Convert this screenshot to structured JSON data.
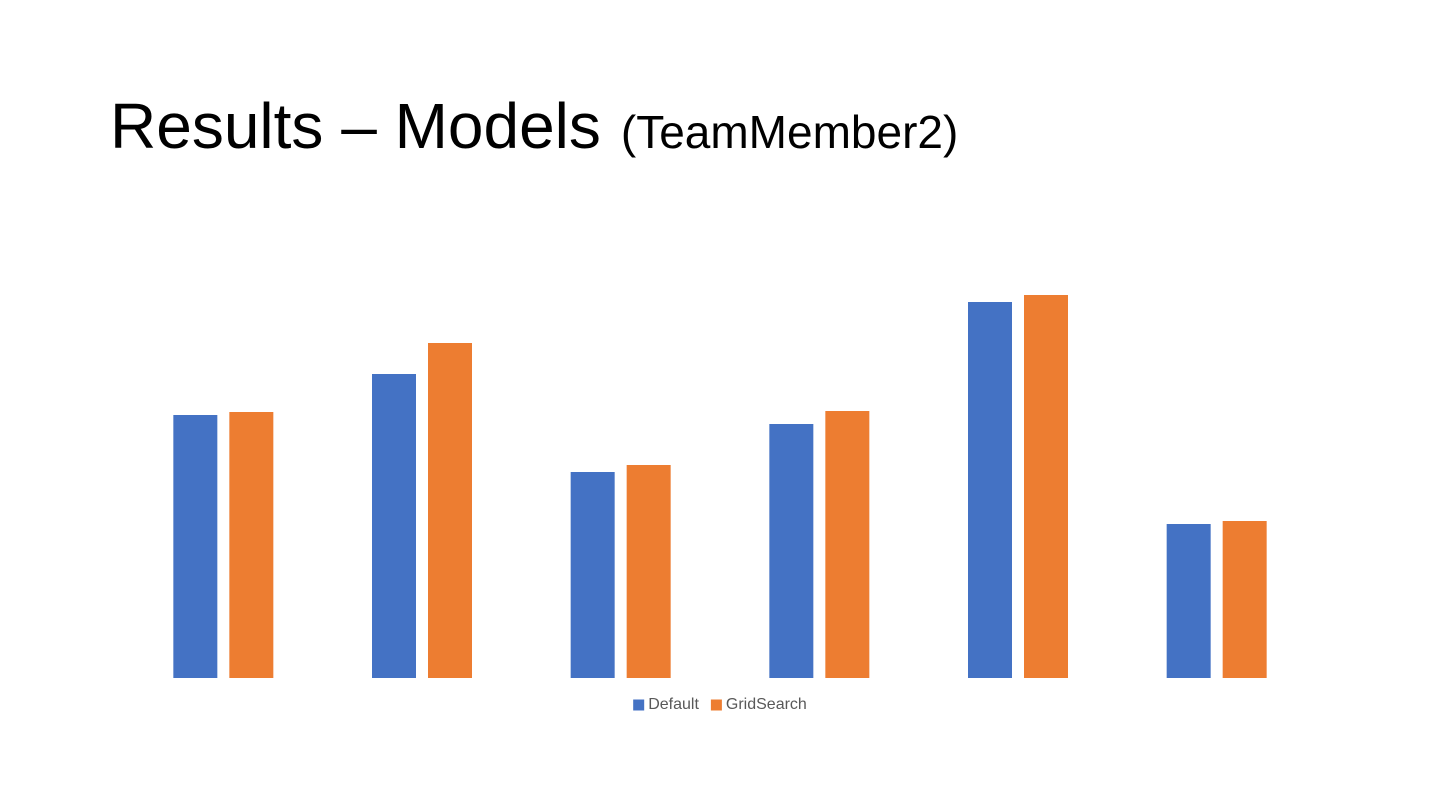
{
  "title": "Results – Models",
  "subtitle": "(TeamMember2)",
  "chart_data": {
    "type": "bar",
    "categories": [
      null,
      null,
      null,
      null,
      null,
      null
    ],
    "series": [
      {
        "name": "Default",
        "color": "#4472c4",
        "values": [
          263,
          304,
          206,
          254,
          376,
          154
        ]
      },
      {
        "name": "GridSearch",
        "color": "#ed7d31",
        "values": [
          266,
          335,
          213,
          267,
          383,
          157
        ]
      }
    ],
    "ylim": [
      0,
      480
    ],
    "grid": false,
    "legend": "bottom"
  }
}
